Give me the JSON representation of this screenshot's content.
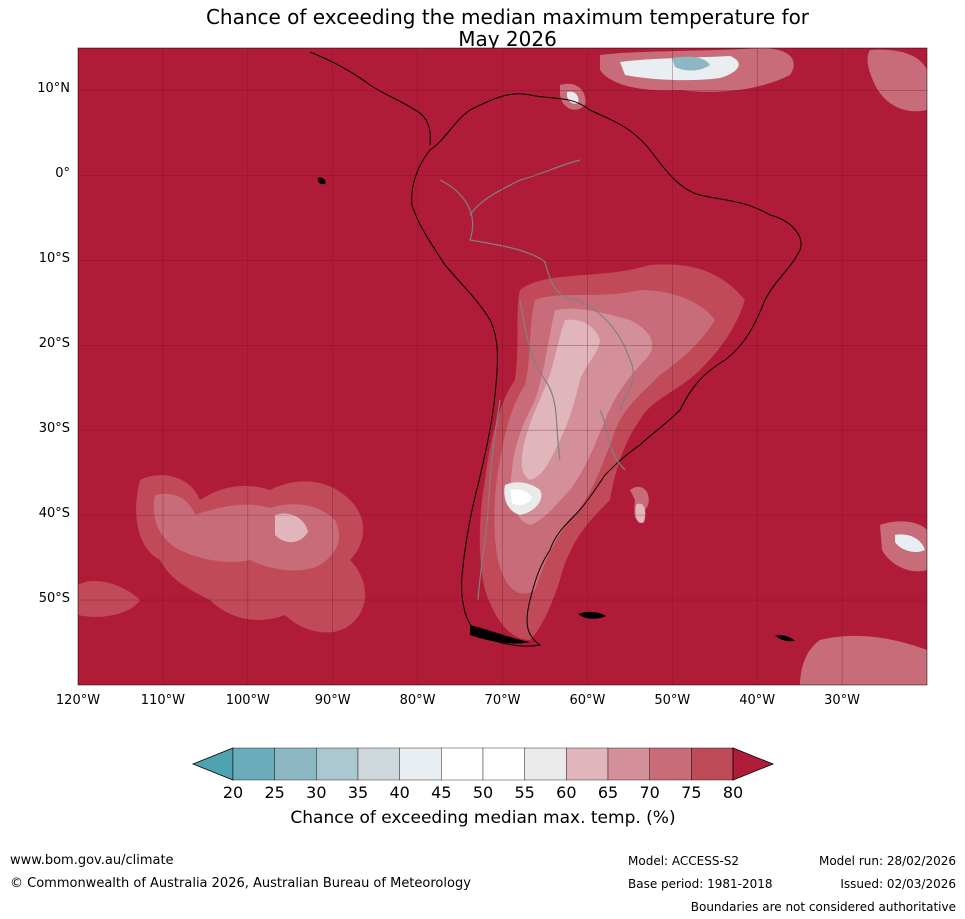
{
  "title": {
    "line1": "Chance of exceeding the median maximum temperature for",
    "line2": "May 2026"
  },
  "map": {
    "lat_ticks": [
      {
        "value": 10,
        "label": "10°N"
      },
      {
        "value": 0,
        "label": "0°"
      },
      {
        "value": -10,
        "label": "10°S"
      },
      {
        "value": -20,
        "label": "20°S"
      },
      {
        "value": -30,
        "label": "30°S"
      },
      {
        "value": -40,
        "label": "40°S"
      },
      {
        "value": -50,
        "label": "50°S"
      }
    ],
    "lon_ticks": [
      {
        "value": -120,
        "label": "120°W"
      },
      {
        "value": -110,
        "label": "110°W"
      },
      {
        "value": -100,
        "label": "100°W"
      },
      {
        "value": -90,
        "label": "90°W"
      },
      {
        "value": -80,
        "label": "80°W"
      },
      {
        "value": -70,
        "label": "70°W"
      },
      {
        "value": -60,
        "label": "60°W"
      },
      {
        "value": -50,
        "label": "50°W"
      },
      {
        "value": -40,
        "label": "40°W"
      },
      {
        "value": -30,
        "label": "30°W"
      }
    ],
    "lon_range": [
      -120,
      -20
    ],
    "lat_range": [
      -60,
      15
    ],
    "background_color": "#b01c38"
  },
  "colorbar": {
    "labels": [
      "20",
      "25",
      "30",
      "35",
      "40",
      "45",
      "50",
      "55",
      "60",
      "65",
      "70",
      "75",
      "80"
    ],
    "colors": [
      "#6aacb9",
      "#8cb7c3",
      "#abc7cf",
      "#cfd8dd",
      "#e8eef1",
      "#ffffff",
      "#ffffff",
      "#ebeaeb",
      "#e0b5bb",
      "#d4909a",
      "#c76c78",
      "#bd4a57"
    ],
    "low_color": "#4fa3b0",
    "high_color": "#b01c38",
    "title": "Chance of exceeding median max. temp. (%)"
  },
  "footer": {
    "website": "www.bom.gov.au/climate",
    "copyright": "© Commonwealth of Australia 2026, Australian Bureau of Meteorology",
    "model": "Model: ACCESS-S2",
    "base_period": "Base period: 1981-2018",
    "model_run": "Model run: 28/02/2026",
    "issued": "Issued: 02/03/2026",
    "disclaimer": "Boundaries are not considered authoritative"
  }
}
